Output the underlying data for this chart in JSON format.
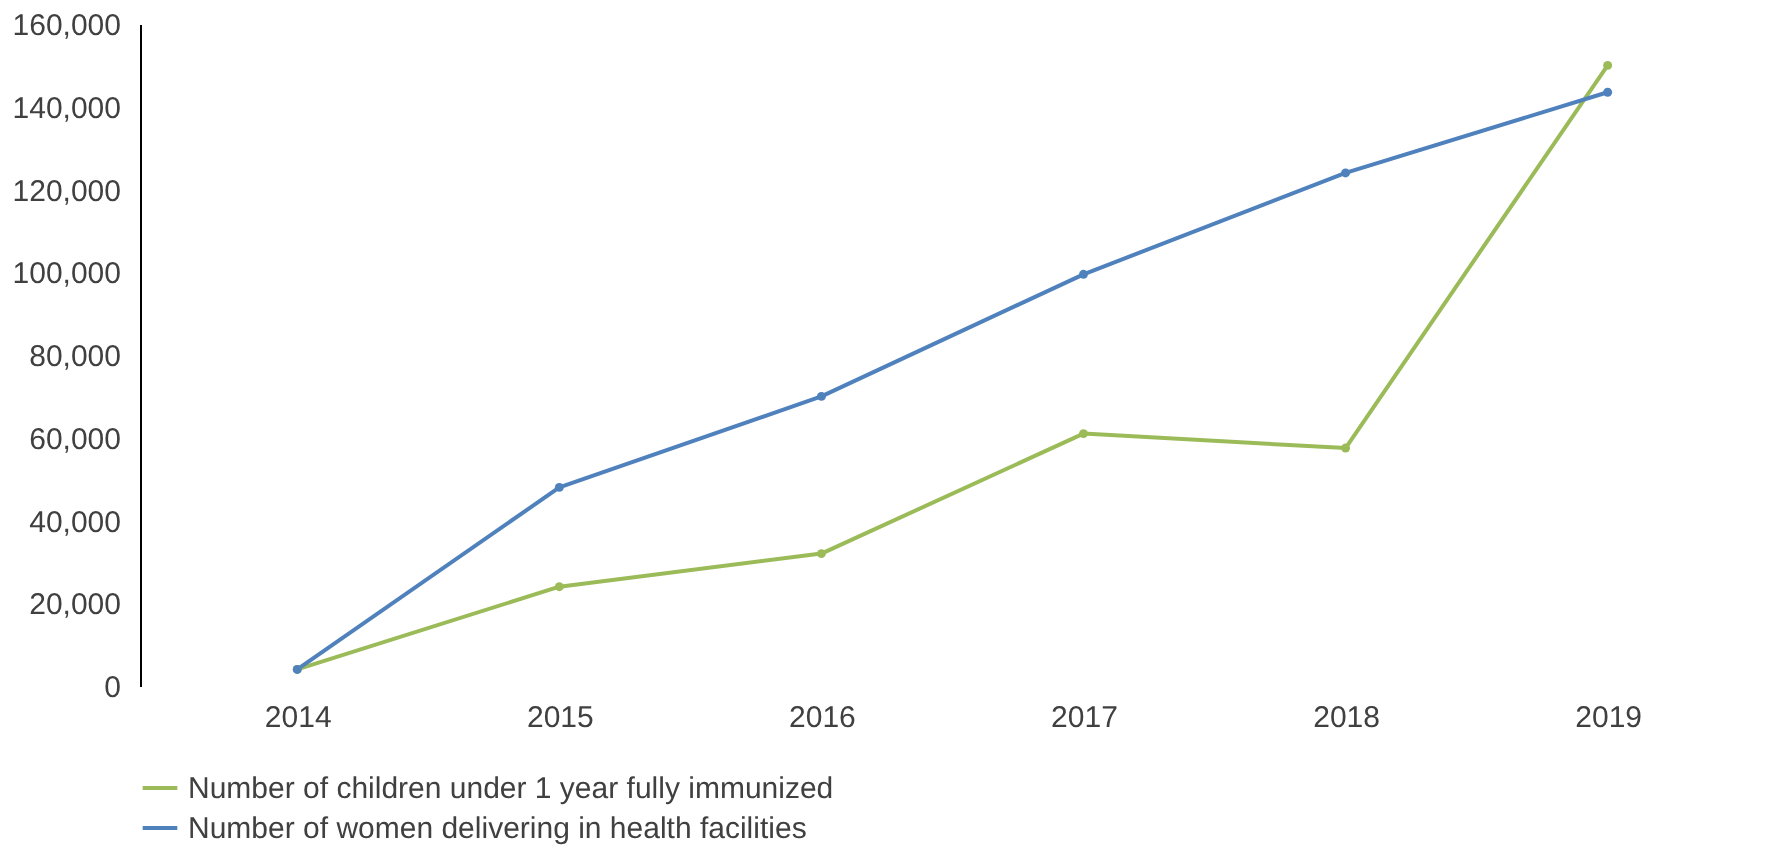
{
  "chart_data": {
    "type": "line",
    "categories": [
      "2014",
      "2015",
      "2016",
      "2017",
      "2018",
      "2019"
    ],
    "series": [
      {
        "name": "Number of children under 1 year fully immunized",
        "color": "#9bbb59",
        "values": [
          4000,
          24000,
          32000,
          61000,
          57500,
          150000
        ]
      },
      {
        "name": "Number of women delivering in health facilities",
        "color": "#4f81bd",
        "values": [
          4000,
          48000,
          70000,
          99500,
          124000,
          143500
        ]
      }
    ],
    "ylim": [
      0,
      160000
    ],
    "yticks": [
      0,
      {
        "value": 20000,
        "label": "20,000"
      },
      {
        "value": 40000,
        "label": "40,000"
      },
      {
        "value": 60000,
        "label": "60,000"
      },
      {
        "value": 80000,
        "label": "80,000"
      },
      {
        "value": 100000,
        "label": "100,000"
      },
      {
        "value": 120000,
        "label": "120,000"
      },
      {
        "value": 140000,
        "label": "140,000"
      },
      {
        "value": 160000,
        "label": "160,000"
      }
    ],
    "grid": false,
    "legend": "bottom",
    "marker": "circle",
    "line_style": "solid"
  }
}
